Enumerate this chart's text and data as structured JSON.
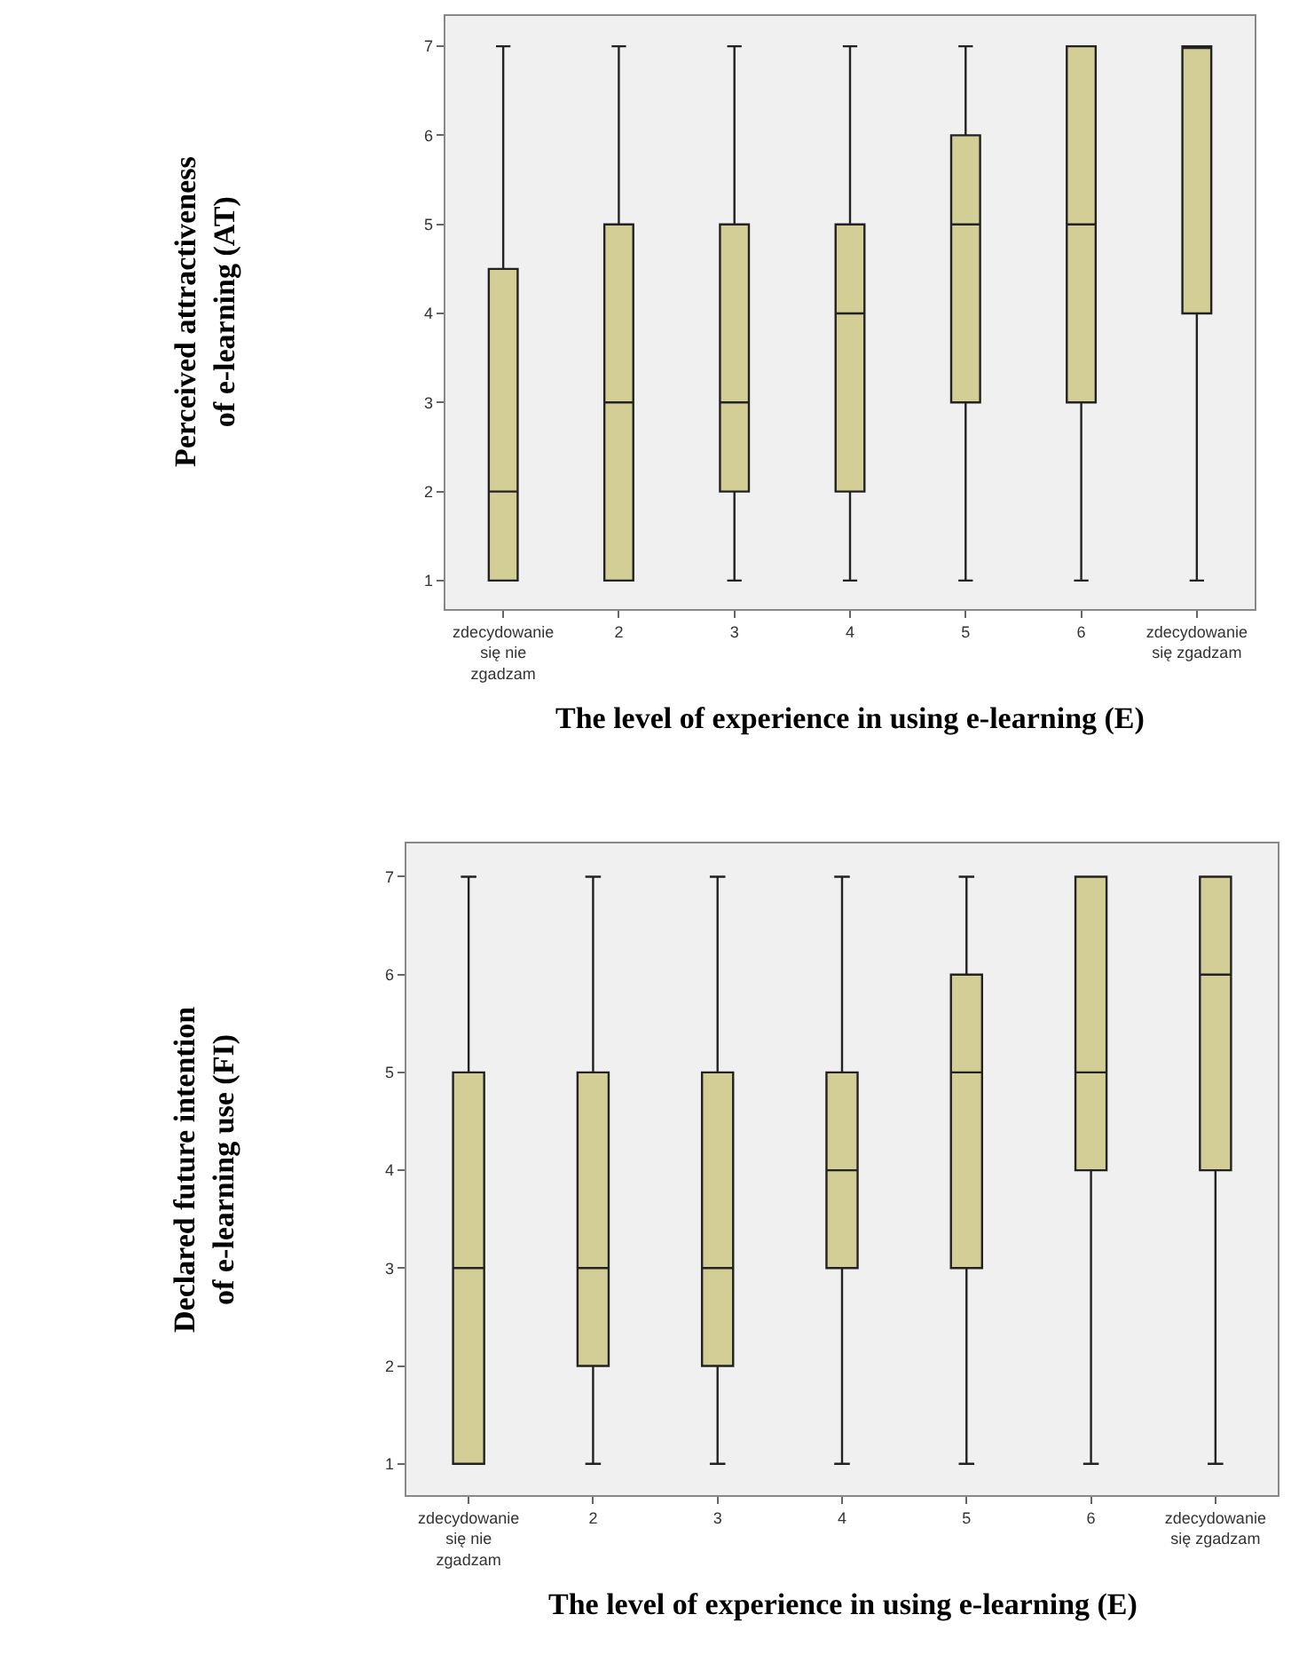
{
  "chart_data": [
    {
      "type": "box",
      "xlabel": "The level of experience in using e-learning (E)",
      "ylabel": "Perceived attractiveness of e-learning (AT)",
      "categories": [
        "zdecydowanie się nie zgadzam",
        "2",
        "3",
        "4",
        "5",
        "6",
        "zdecydowanie się zgadzam"
      ],
      "series": [
        {
          "color": "#d3ce96",
          "boxes": [
            {
              "low": 1,
              "q1": 1,
              "median": 2,
              "q3": 4.5,
              "high": 7
            },
            {
              "low": 1,
              "q1": 1,
              "median": 3,
              "q3": 5,
              "high": 7
            },
            {
              "low": 1,
              "q1": 2,
              "median": 3,
              "q3": 5,
              "high": 7
            },
            {
              "low": 1,
              "q1": 2,
              "median": 4,
              "q3": 5,
              "high": 7
            },
            {
              "low": 1,
              "q1": 3,
              "median": 5,
              "q3": 6,
              "high": 7
            },
            {
              "low": 1,
              "q1": 3,
              "median": 5,
              "q3": 7,
              "high": 7
            },
            {
              "low": 1,
              "q1": 4,
              "median": 7,
              "q3": 7,
              "high": 7
            }
          ]
        }
      ],
      "ylim": [
        0.68,
        7.34
      ],
      "yticks": [
        1,
        2,
        3,
        4,
        5,
        6,
        7
      ],
      "grid": false
    },
    {
      "type": "box",
      "xlabel": "The level of experience in using e-learning (E)",
      "ylabel": "Declared future intention of e-learning use (FI)",
      "categories": [
        "zdecydowanie się nie zgadzam",
        "2",
        "3",
        "4",
        "5",
        "6",
        "zdecydowanie się zgadzam"
      ],
      "series": [
        {
          "color": "#d3ce96",
          "boxes": [
            {
              "low": 1,
              "q1": 1,
              "median": 3,
              "q3": 5,
              "high": 7
            },
            {
              "low": 1,
              "q1": 2,
              "median": 3,
              "q3": 5,
              "high": 7
            },
            {
              "low": 1,
              "q1": 2,
              "median": 3,
              "q3": 5,
              "high": 7
            },
            {
              "low": 1,
              "q1": 3,
              "median": 4,
              "q3": 5,
              "high": 7
            },
            {
              "low": 1,
              "q1": 3,
              "median": 5,
              "q3": 6,
              "high": 7
            },
            {
              "low": 1,
              "q1": 4,
              "median": 5,
              "q3": 7,
              "high": 7
            },
            {
              "low": 1,
              "q1": 4,
              "median": 6,
              "q3": 7,
              "high": 7
            }
          ]
        }
      ],
      "ylim": [
        0.68,
        7.34
      ],
      "yticks": [
        1,
        2,
        3,
        4,
        5,
        6,
        7
      ],
      "grid": false
    }
  ]
}
